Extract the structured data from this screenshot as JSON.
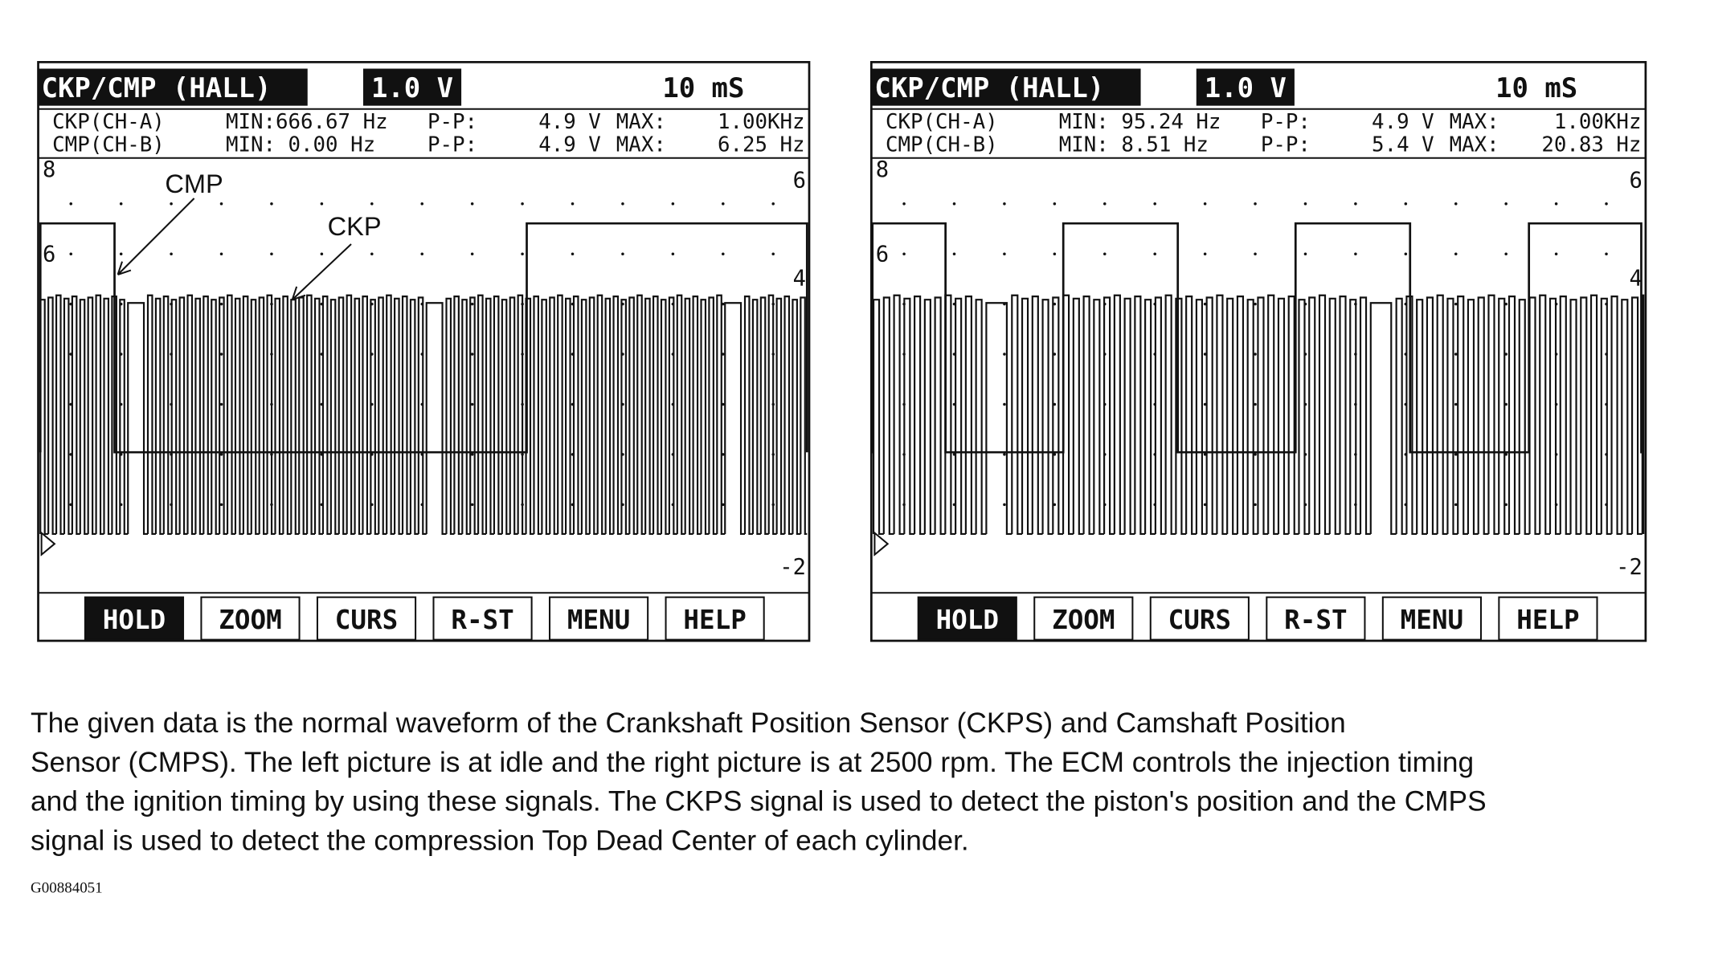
{
  "screens": [
    {
      "header": {
        "mode": "CKP/CMP (HALL)",
        "volts": "1.0 V",
        "time": "10 mS"
      },
      "readings": [
        [
          "CKP(CH-A)",
          "MIN:666.67 Hz",
          "P-P:",
          "4.9 V",
          "MAX:",
          "1.00KHz"
        ],
        [
          "CMP(CH-B)",
          "MIN:  0.00 Hz",
          "P-P:",
          "4.9 V",
          "MAX:",
          "6.25 Hz"
        ]
      ],
      "scale": {
        "top_left": "8",
        "mid_left": "6",
        "top_right": "6",
        "mid_right": "4",
        "bottom_right": "-2"
      },
      "annotations": [
        "CMP",
        "CKP"
      ],
      "buttons": [
        "HOLD",
        "ZOOM",
        "CURS",
        "R-ST",
        "MENU",
        "HELP"
      ]
    },
    {
      "header": {
        "mode": "CKP/CMP (HALL)",
        "volts": "1.0 V",
        "time": "10 mS"
      },
      "readings": [
        [
          "CKP(CH-A)",
          "MIN: 95.24 Hz",
          "P-P:",
          "4.9 V",
          "MAX:",
          "1.00KHz"
        ],
        [
          "CMP(CH-B)",
          "MIN:  8.51 Hz",
          "P-P:",
          "5.4 V",
          "MAX:",
          "20.83 Hz"
        ]
      ],
      "scale": {
        "top_left": "8",
        "mid_left": "6",
        "top_right": "6",
        "mid_right": "4",
        "bottom_right": "-2"
      },
      "buttons": [
        "HOLD",
        "ZOOM",
        "CURS",
        "R-ST",
        "MENU",
        "HELP"
      ]
    }
  ],
  "caption": [
    "The given data is the normal waveform of the Crankshaft Position Sensor (CKPS) and Camshaft Position",
    "Sensor (CMPS). The left picture is at idle and the right picture is at 2500 rpm. The ECM controls the injection timing",
    "and the ignition timing by using these signals. The CKPS signal is used to detect the piston's position and the CMPS",
    "signal is used to detect the compression Top Dead Center of each cylinder."
  ],
  "figure_id": "G00884051"
}
